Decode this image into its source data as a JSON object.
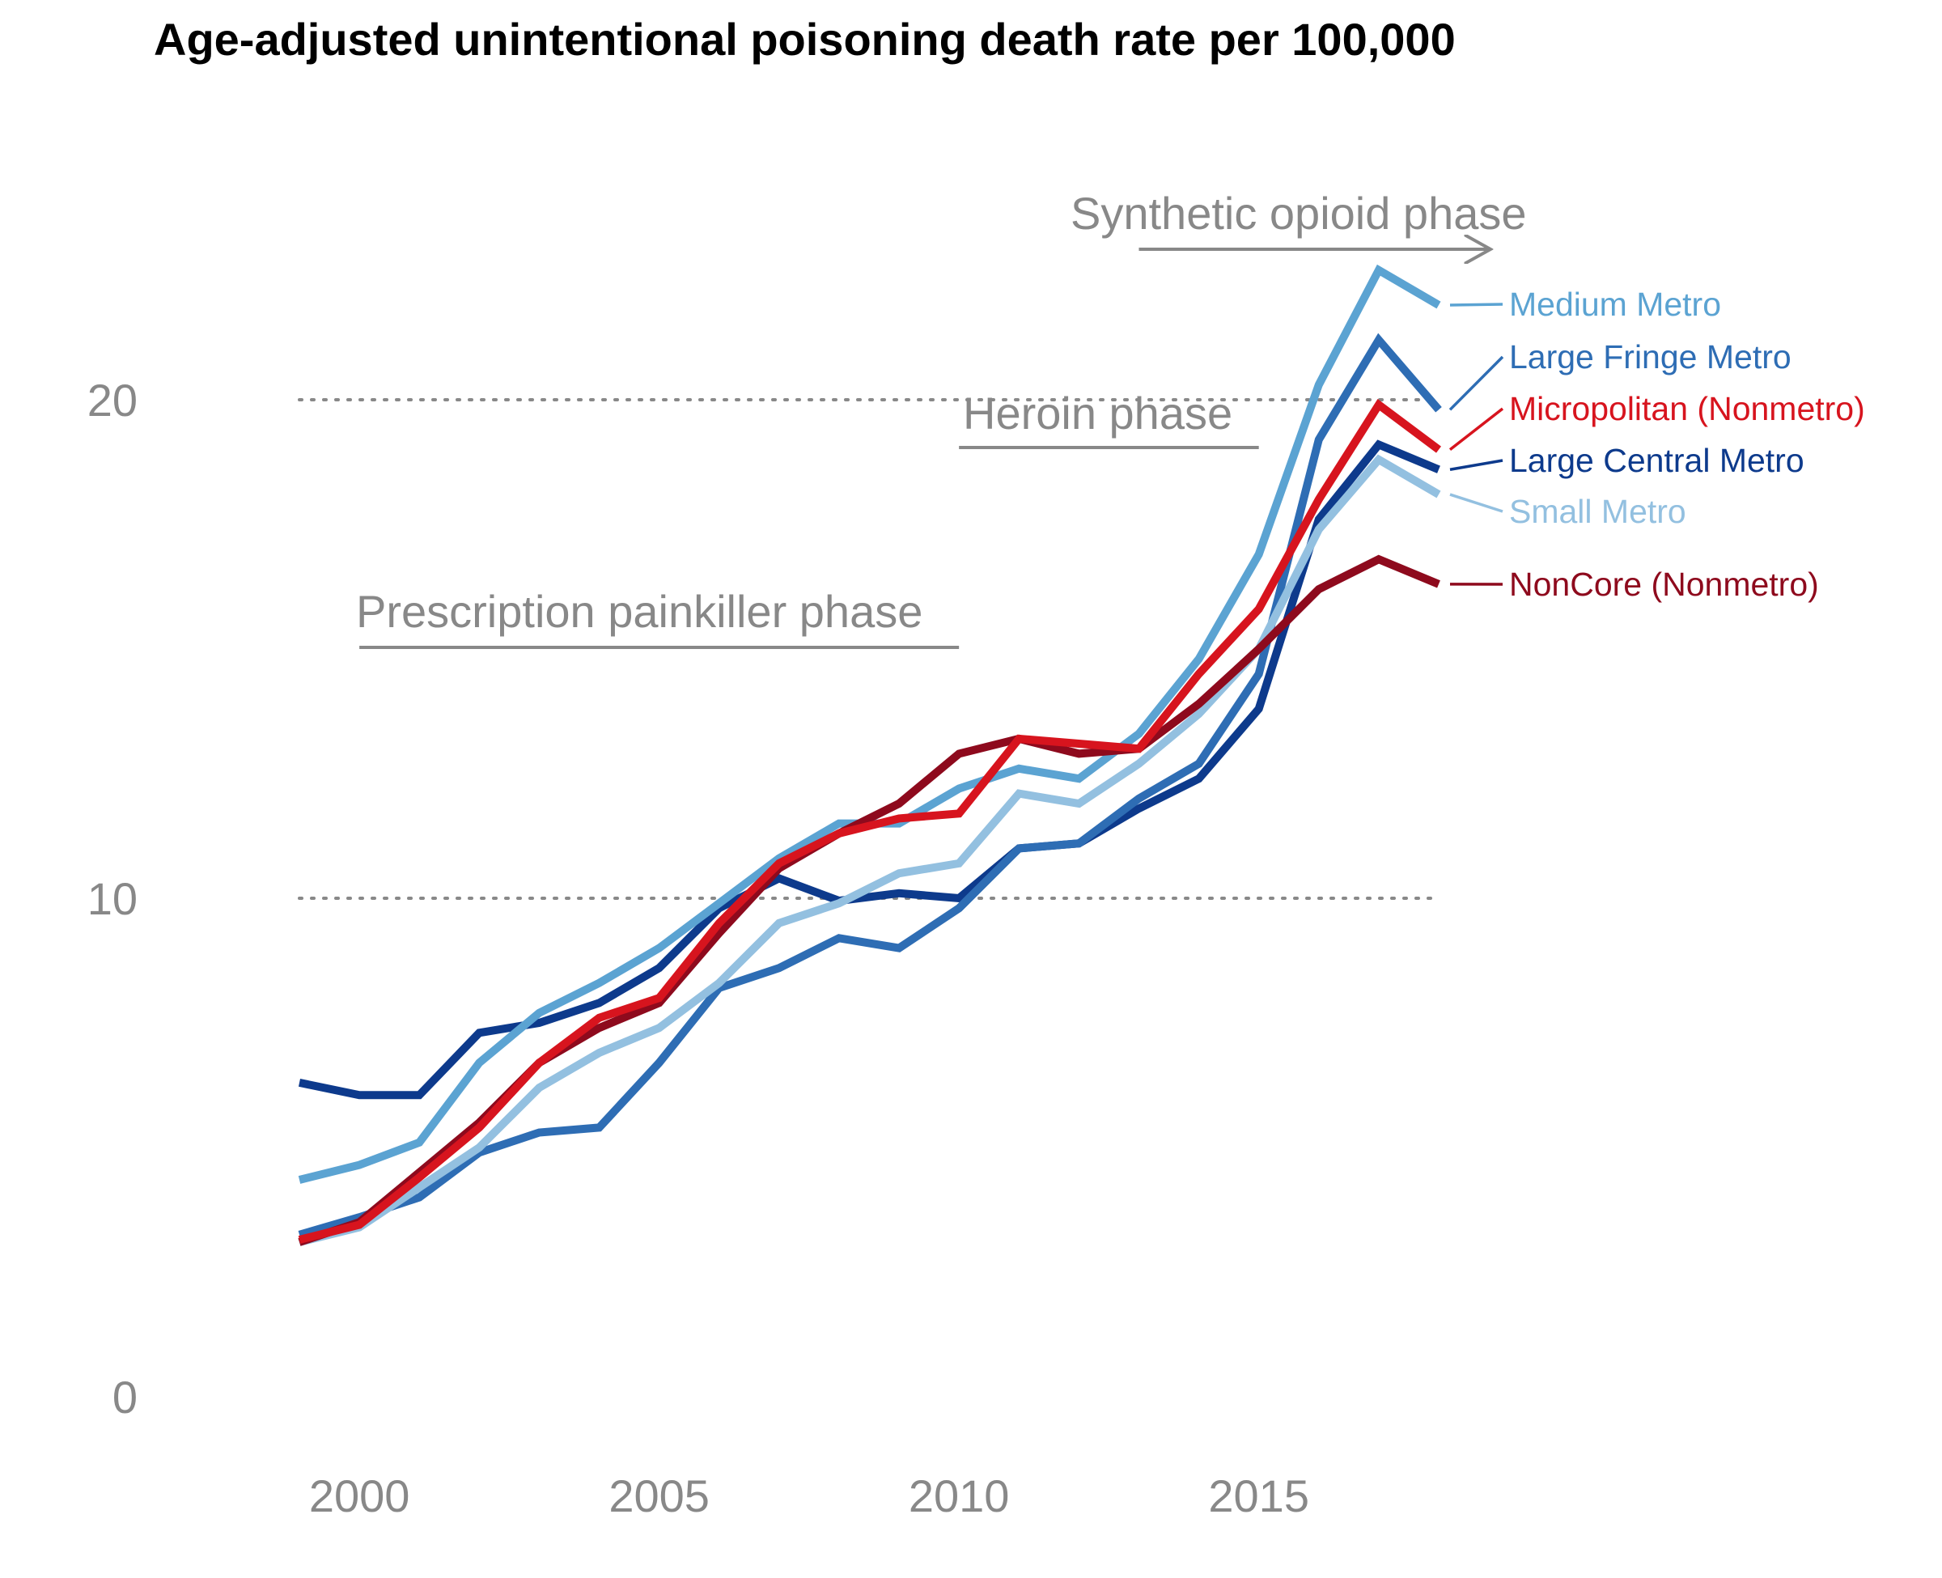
{
  "chart_data": {
    "type": "line",
    "title": "Age-adjusted unintentional poisoning death rate per 100,000",
    "xlabel": "",
    "ylabel": "",
    "x": [
      1999,
      2000,
      2001,
      2002,
      2003,
      2004,
      2005,
      2006,
      2007,
      2008,
      2009,
      2010,
      2011,
      2012,
      2013,
      2014,
      2015,
      2016,
      2017,
      2018
    ],
    "xlim": [
      1999,
      2018
    ],
    "ylim": [
      0,
      22.5
    ],
    "x_ticks": [
      {
        "value": 2000,
        "label": "2000"
      },
      {
        "value": 2005,
        "label": "2005"
      },
      {
        "value": 2010,
        "label": "2010"
      },
      {
        "value": 2015,
        "label": "2015"
      }
    ],
    "y_ticks": [
      {
        "value": 0,
        "label": "0"
      },
      {
        "value": 10,
        "label": "10"
      },
      {
        "value": 20,
        "label": "20"
      }
    ],
    "gridlines": {
      "values": [
        10,
        20
      ],
      "style": "dotted",
      "color": "#888888"
    },
    "legend": "direct labels at right end of lines",
    "annotations": [
      {
        "id": "prescription",
        "text": "Prescription painkiller phase",
        "start": 2000,
        "end": 2010,
        "arrow": false
      },
      {
        "id": "heroin",
        "text": "Heroin phase",
        "start": 2010,
        "end": 2015,
        "arrow": false
      },
      {
        "id": "synthetic",
        "text": "Synthetic opioid phase",
        "start": 2013,
        "end": 2019,
        "arrow": true
      }
    ],
    "series": [
      {
        "name": "Medium Metro",
        "color": "#5BA3D2",
        "values": [
          4.35,
          4.65,
          5.1,
          6.7,
          7.7,
          8.3,
          9.0,
          9.9,
          10.8,
          11.5,
          11.5,
          12.2,
          12.6,
          12.4,
          13.3,
          14.8,
          16.9,
          20.3,
          22.6,
          21.9
        ]
      },
      {
        "name": "Large Fringe Metro",
        "color": "#2E6DB4",
        "values": [
          3.25,
          3.6,
          4.0,
          4.9,
          5.3,
          5.4,
          6.7,
          8.2,
          8.6,
          9.2,
          9.0,
          9.8,
          11.0,
          11.1,
          12.0,
          12.7,
          14.5,
          19.2,
          21.2,
          19.8
        ]
      },
      {
        "name": "Micropolitan (Nonmetro)",
        "color": "#D7141E",
        "values": [
          3.15,
          3.45,
          4.4,
          5.4,
          6.7,
          7.6,
          8.0,
          9.5,
          10.7,
          11.3,
          11.6,
          11.7,
          13.2,
          13.1,
          13.0,
          14.5,
          15.8,
          18.0,
          19.9,
          19.0
        ]
      },
      {
        "name": "Large Central Metro",
        "color": "#0D3A8C",
        "values": [
          6.3,
          6.05,
          6.05,
          7.3,
          7.5,
          7.9,
          8.6,
          9.8,
          10.4,
          9.95,
          10.1,
          10.0,
          11.0,
          11.1,
          11.8,
          12.4,
          13.8,
          17.6,
          19.1,
          18.6
        ]
      },
      {
        "name": "Small Metro",
        "color": "#93C0E0",
        "values": [
          3.1,
          3.4,
          4.2,
          5.0,
          6.2,
          6.9,
          7.4,
          8.3,
          9.5,
          9.9,
          10.5,
          10.7,
          12.1,
          11.9,
          12.7,
          13.7,
          15.0,
          17.4,
          18.8,
          18.1
        ]
      },
      {
        "name": "NonCore (Nonmetro)",
        "color": "#8E0A1D",
        "values": [
          3.1,
          3.5,
          4.5,
          5.5,
          6.7,
          7.4,
          7.9,
          9.3,
          10.6,
          11.3,
          11.9,
          12.9,
          13.2,
          12.9,
          13.0,
          13.9,
          15.0,
          16.2,
          16.8,
          16.3
        ]
      }
    ]
  }
}
